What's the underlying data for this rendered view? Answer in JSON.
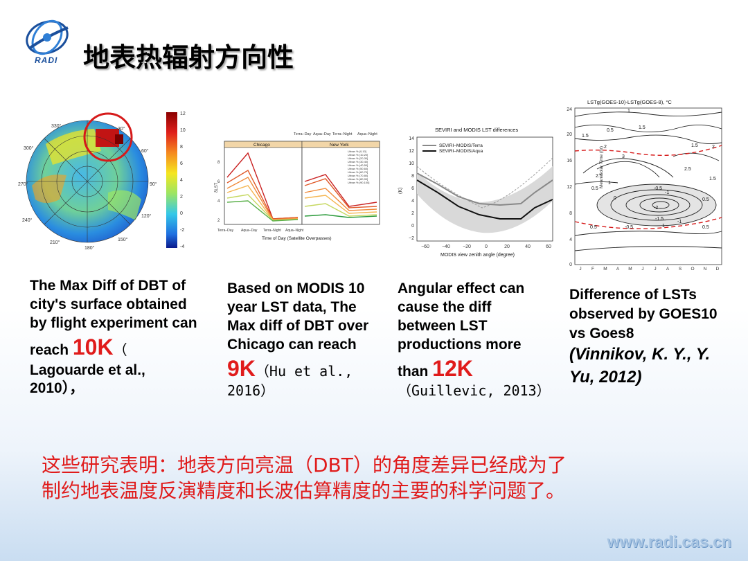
{
  "header": {
    "logo_text": "RADI",
    "title": "地表热辐射方向性"
  },
  "figures": {
    "polar": {
      "colorbar_ticks": [
        "12",
        "10",
        "8",
        "6",
        "4",
        "2",
        "0",
        "-2",
        "-4"
      ],
      "angle_labels": [
        "330°",
        "30°",
        "300°",
        "60°",
        "270°",
        "90°",
        "240°",
        "120°",
        "210°",
        "150°",
        "180°"
      ]
    },
    "chicago": {
      "top_labels": [
        "Terra–Day",
        "Aqua–Day",
        "Terra–Night",
        "Aqua–Night"
      ],
      "panels": [
        "Chicago",
        "New York"
      ],
      "x_ticks": [
        "Terra–Day",
        "Aqua–Day",
        "Terra–Night",
        "Aqua–Night"
      ],
      "xlabel": "Time of Day (Satellite Overpasses)",
      "ylabel": "δLST",
      "y_ticks": [
        "8",
        "6",
        "4",
        "2"
      ],
      "legend": [
        "Urban % (0,10]",
        "Urban % (10,20]",
        "Urban % (20,30]",
        "Urban % (30,40]",
        "Urban % (40,50]",
        "Urban % (50,60]",
        "Urban % (60,70]",
        "Urban % (70,80]",
        "Urban % (80,90]",
        "Urban % (90,100]"
      ]
    },
    "seviri": {
      "title": "SEVIRI and MODIS LST differences",
      "legend": [
        "SEVIRI–MODIS/Terra",
        "SEVIRI–MODIS/Aqua"
      ],
      "xlabel": "MODIS view zenith angle (degree)",
      "ylabel": "(K)",
      "x_ticks": [
        "−60",
        "−40",
        "−20",
        "0",
        "20",
        "40",
        "60"
      ],
      "y_ticks": [
        "14",
        "12",
        "10",
        "8",
        "6",
        "4",
        "2",
        "0",
        "−2"
      ]
    },
    "goes": {
      "title": "LSTg(GOES-10)-LSTg(GOES-8),  °C",
      "ylabel": "Mean Solar Time (hr)",
      "y_ticks": [
        "24",
        "20",
        "16",
        "12",
        "8",
        "4",
        "0"
      ],
      "months": [
        "J",
        "F",
        "M",
        "A",
        "M",
        "J",
        "J",
        "A",
        "S",
        "O",
        "N",
        "D"
      ],
      "contour_labels": [
        "1",
        "1.5",
        "0.5",
        "1.5",
        "2",
        "1.5",
        "2",
        "2.5",
        "3",
        "2.5",
        "1.5",
        "0.5",
        "1",
        "0",
        "-0.5",
        "-1",
        "-2",
        "-1.5",
        "-1",
        "0.5",
        "-0.5",
        "0.5",
        "0.5",
        "1"
      ]
    }
  },
  "captions": {
    "c1": {
      "text": "The Max Diff of DBT of city's surface obtained by flight experiment can reach ",
      "highlight": "10K",
      "tail_a": "（",
      "tail_b": "Lagouarde et al., 2010），"
    },
    "c2": {
      "text": "Based on MODIS 10 year LST data, The Max diff of DBT over Chicago can reach ",
      "highlight": "9K",
      "tail": "（Hu et al., 2016）"
    },
    "c3": {
      "text": "Angular effect can cause the diff between LST productions more than ",
      "highlight": "12K",
      "tail": "（Guillevic, 2013）"
    },
    "c4": {
      "text": "Difference of LSTs observed by GOES10 vs Goes8",
      "citation": "(Vinnikov, K. Y., Y. Yu, 2012)"
    }
  },
  "conclusion": {
    "line1": "这些研究表明：地表方向亮温（DBT）的角度差异已经成为了",
    "line2": "制约地表温度反演精度和长波估算精度的主要的科学问题了。"
  },
  "footer": {
    "url": "www.radi.cas.cn"
  },
  "colors": {
    "accent_red": "#e01b1b",
    "logo_blue": "#1a4f9c"
  }
}
